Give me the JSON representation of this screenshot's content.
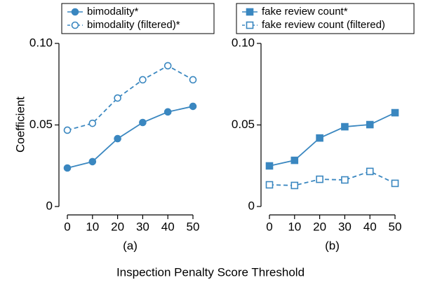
{
  "xlabel": "Inspection Penalty Score Threshold",
  "chart_data": [
    {
      "type": "line",
      "caption": "(a)",
      "ylabel": "Coefficient",
      "legend": "above",
      "x": [
        0,
        10,
        20,
        30,
        40,
        50
      ],
      "xlim": [
        0,
        50
      ],
      "xticks": [
        0,
        10,
        20,
        30,
        40,
        50
      ],
      "ylim": [
        0,
        0.1
      ],
      "yticks": [
        0,
        0.05,
        {
          "value": 0.1,
          "label": "0.10"
        }
      ],
      "series": [
        {
          "name": "bimodality*",
          "color": "#3a87c0",
          "marker": "circle",
          "filled": true,
          "dashed": false,
          "values": [
            0.0236,
            0.0275,
            0.0416,
            0.0515,
            0.058,
            0.0614
          ]
        },
        {
          "name": "bimodality (filtered)*",
          "color": "#3a87c0",
          "marker": "circle",
          "filled": false,
          "dashed": true,
          "values": [
            0.0468,
            0.051,
            0.0665,
            0.0777,
            0.0863,
            0.0777
          ]
        }
      ]
    },
    {
      "type": "line",
      "caption": "(b)",
      "legend": "above",
      "x": [
        0,
        10,
        20,
        30,
        40,
        50
      ],
      "xlim": [
        0,
        50
      ],
      "xticks": [
        0,
        10,
        20,
        30,
        40,
        50
      ],
      "ylim": [
        0,
        0.1
      ],
      "yticks": [
        0,
        0.05,
        {
          "value": 0.1,
          "label": "0.10"
        }
      ],
      "series": [
        {
          "name": "fake review count*",
          "color": "#3a87c0",
          "marker": "square",
          "filled": true,
          "dashed": false,
          "values": [
            0.0249,
            0.0283,
            0.042,
            0.0489,
            0.0502,
            0.0575
          ]
        },
        {
          "name": "fake review count (filtered)",
          "color": "#3a87c0",
          "marker": "square",
          "filled": false,
          "dashed": true,
          "values": [
            0.0133,
            0.0129,
            0.0167,
            0.0163,
            0.0215,
            0.0142
          ]
        }
      ]
    }
  ]
}
